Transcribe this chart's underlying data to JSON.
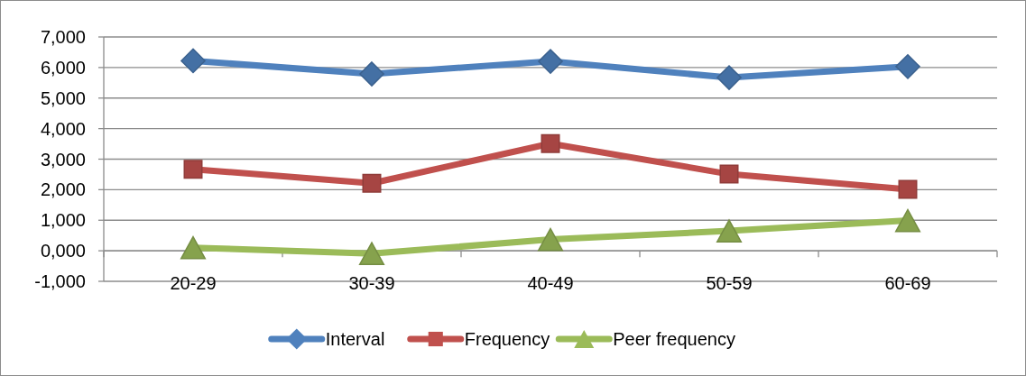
{
  "chart_data": {
    "type": "line",
    "categories": [
      "20-29",
      "30-39",
      "40-49",
      "50-59",
      "60-69"
    ],
    "series": [
      {
        "name": "Interval",
        "color": "#4f81bd",
        "marker": "diamond",
        "values": [
          6220,
          5790,
          6200,
          5670,
          6030
        ]
      },
      {
        "name": "Frequency",
        "color": "#c0504d",
        "marker": "square",
        "values": [
          2670,
          2210,
          3510,
          2510,
          2010
        ]
      },
      {
        "name": "Peer frequency",
        "color": "#9bbb59",
        "marker": "triangle",
        "values": [
          100,
          -90,
          370,
          650,
          990
        ]
      }
    ],
    "ylim": [
      -1000,
      7000
    ],
    "yticks": [
      {
        "value": -1000,
        "label": "-1,000"
      },
      {
        "value": 0,
        "label": "0,000"
      },
      {
        "value": 1000,
        "label": "1,000"
      },
      {
        "value": 2000,
        "label": "2,000"
      },
      {
        "value": 3000,
        "label": "3,000"
      },
      {
        "value": 4000,
        "label": "4,000"
      },
      {
        "value": 5000,
        "label": "5,000"
      },
      {
        "value": 6000,
        "label": "6,000"
      },
      {
        "value": 7000,
        "label": "7,000"
      }
    ],
    "grid": "y",
    "legend": "bottom",
    "line_style": "solid"
  }
}
